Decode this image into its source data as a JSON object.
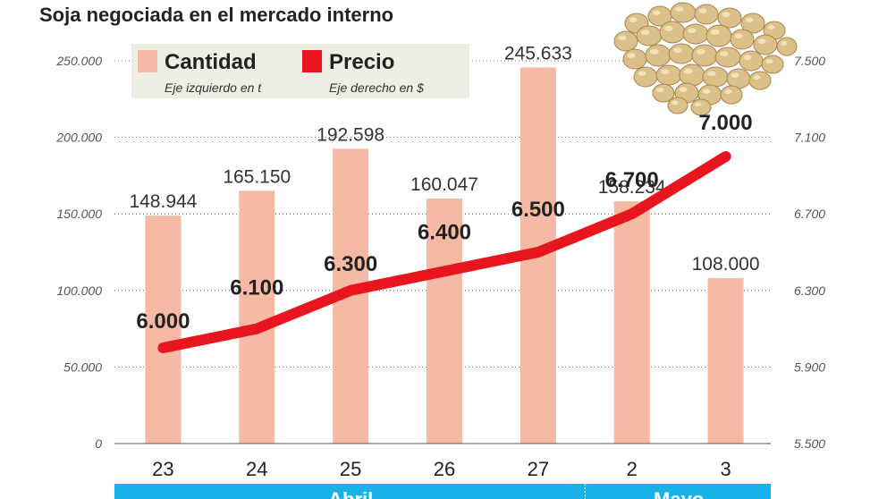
{
  "colors": {
    "bar": "#f6b9a3",
    "line": "#e8141e",
    "month_band": "#1ab0e8",
    "legend_bg": "#eeeee4"
  },
  "icons": {
    "image": "soybeans-photo"
  },
  "chart_data": {
    "type": "bar+line",
    "title": "Soja negociada en el mercado interno",
    "categories": [
      "23",
      "24",
      "25",
      "26",
      "27",
      "2",
      "3"
    ],
    "months": [
      {
        "label": "Abril",
        "span": [
          0,
          4
        ]
      },
      {
        "label": "Mayo",
        "span": [
          5,
          6
        ]
      }
    ],
    "series": [
      {
        "name": "Cantidad",
        "axis_note": "Eje izquierdo en t",
        "type": "bar",
        "axis": "left",
        "values": [
          148944,
          165150,
          192598,
          160047,
          245633,
          158234,
          108000
        ],
        "labels": [
          "148.944",
          "165.150",
          "192.598",
          "160.047",
          "245.633",
          "158.234",
          "108.000"
        ]
      },
      {
        "name": "Precio",
        "axis_note": "Eje derecho en $",
        "type": "line",
        "axis": "right",
        "values": [
          6000,
          6100,
          6300,
          6400,
          6500,
          6700,
          7000
        ],
        "labels": [
          "6.000",
          "6.100",
          "6.300",
          "6.400",
          "6.500",
          "6.700",
          "7.000"
        ]
      }
    ],
    "y_left": {
      "range": [
        0,
        250000
      ],
      "ticks": [
        0,
        50000,
        100000,
        150000,
        200000,
        250000
      ],
      "tick_labels": [
        "0",
        "50.000",
        "100.000",
        "150.000",
        "200.000",
        "250.000"
      ]
    },
    "y_right": {
      "range": [
        5500,
        7500
      ],
      "ticks": [
        5500,
        5900,
        6300,
        6700,
        7100,
        7500
      ],
      "tick_labels": [
        "5.500",
        "5.900",
        "6.300",
        "6.700",
        "7.100",
        "7.500"
      ]
    },
    "grid": true,
    "legend_position": "top-left"
  }
}
